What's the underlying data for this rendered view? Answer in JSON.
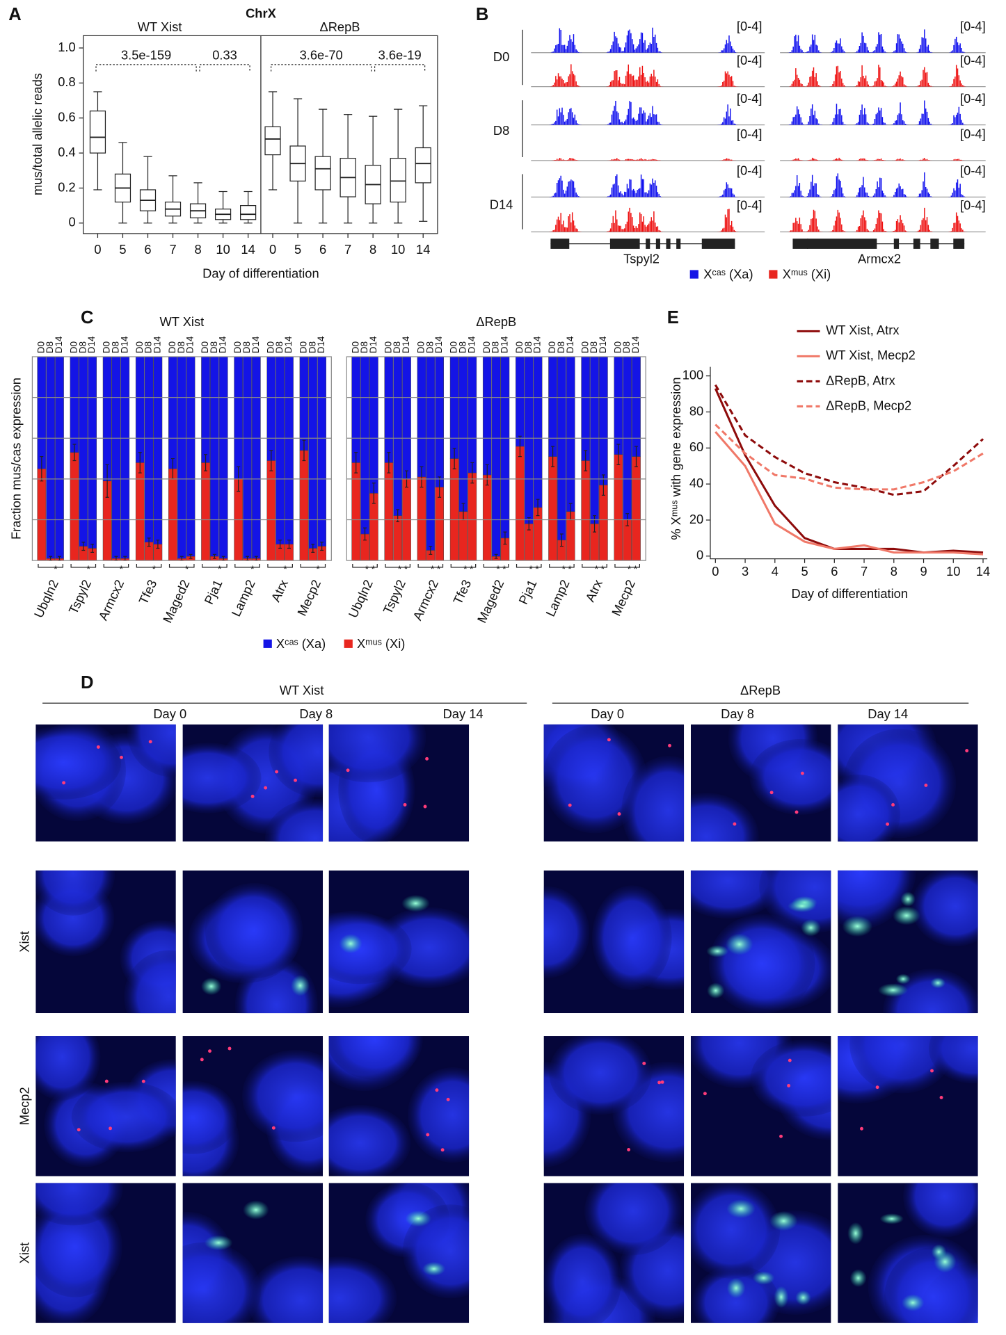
{
  "panel_labels": [
    "A",
    "B",
    "C",
    "D",
    "E"
  ],
  "chart_data": [
    {
      "type": "box",
      "title": "ChrX",
      "ylabel": "mus/total allelic reads",
      "xlabel": "Day of differentiation",
      "ylim": [
        -0.06,
        1.07
      ],
      "yticks": [
        0,
        0.2,
        0.4,
        0.6,
        0.8,
        {
          "value": 1,
          "label": "1.0"
        }
      ],
      "groups": [
        {
          "name": "WT Xist",
          "categories": [
            "0",
            "5",
            "6",
            "7",
            "8",
            "10",
            "14"
          ],
          "whisker_high": [
            0.75,
            0.46,
            0.38,
            0.27,
            0.23,
            0.18,
            0.18
          ],
          "q3": [
            0.64,
            0.28,
            0.19,
            0.12,
            0.11,
            0.08,
            0.1
          ],
          "median": [
            0.49,
            0.2,
            0.13,
            0.08,
            0.07,
            0.05,
            0.05
          ],
          "q1": [
            0.4,
            0.12,
            0.07,
            0.04,
            0.03,
            0.02,
            0.02
          ],
          "whisker_low": [
            0.19,
            0,
            0,
            0,
            0,
            0,
            0
          ],
          "annotations": [
            "3.5e-159",
            "0.33"
          ]
        },
        {
          "name": "ΔRepB",
          "categories": [
            "0",
            "5",
            "6",
            "7",
            "8",
            "10",
            "14"
          ],
          "whisker_high": [
            0.75,
            0.71,
            0.65,
            0.62,
            0.61,
            0.65,
            0.67
          ],
          "q3": [
            0.55,
            0.44,
            0.38,
            0.37,
            0.33,
            0.37,
            0.43
          ],
          "median": [
            0.48,
            0.34,
            0.31,
            0.26,
            0.22,
            0.24,
            0.34
          ],
          "q1": [
            0.39,
            0.24,
            0.19,
            0.15,
            0.11,
            0.12,
            0.23
          ],
          "whisker_low": [
            0.19,
            0,
            0,
            0,
            0,
            0,
            0.01
          ],
          "annotations": [
            "3.6e-70",
            "3.6e-19"
          ]
        }
      ]
    },
    {
      "type": "stacked_bar",
      "ylabel": "Fraction mus/cas expression",
      "ylim": [
        0,
        1
      ],
      "grid_lines": [
        0.2,
        0.4,
        0.6,
        0.8
      ],
      "categories": [
        "Ubqln2",
        "Tspyl2",
        "Armcx2",
        "Tfe3",
        "Maged2",
        "Pja1",
        "Lamp2",
        "Atrx",
        "Mecp2"
      ],
      "subcategories": [
        "D0",
        "D8",
        "D14"
      ],
      "groups": [
        {
          "title": "WT Xist",
          "annotation": "*"
        },
        {
          "title": "ΔRepB",
          "annotation": "* *"
        }
      ],
      "series": [
        {
          "name": "Xᶜᵃˢ (Xa)",
          "color": "#1414e6",
          "values": [
            [
              0.55,
              0.99,
              0.99,
              0.47,
              0.93,
              0.94,
              0.61,
              0.99,
              0.99,
              0.52,
              0.91,
              0.92,
              0.55,
              0.99,
              0.98,
              0.52,
              0.98,
              0.99,
              0.6,
              0.99,
              0.99,
              0.51,
              0.92,
              0.92,
              0.46,
              0.94,
              0.93
            ],
            [
              0.52,
              0.87,
              0.67,
              0.52,
              0.78,
              0.6,
              0.59,
              0.95,
              0.64,
              0.5,
              0.76,
              0.57,
              0.58,
              0.98,
              0.89,
              0.44,
              0.82,
              0.74,
              0.49,
              0.9,
              0.76,
              0.51,
              0.82,
              0.63,
              0.48,
              0.8,
              0.49
            ]
          ]
        },
        {
          "name": "Xᵐᵘˢ (Xi)",
          "color": "#e8261f",
          "values": [
            [
              0.45,
              0.01,
              0.01,
              0.53,
              0.07,
              0.06,
              0.39,
              0.01,
              0.01,
              0.48,
              0.09,
              0.08,
              0.45,
              0.01,
              0.02,
              0.48,
              0.02,
              0.01,
              0.4,
              0.01,
              0.01,
              0.49,
              0.08,
              0.08,
              0.54,
              0.06,
              0.07
            ],
            [
              0.48,
              0.13,
              0.33,
              0.48,
              0.22,
              0.4,
              0.41,
              0.05,
              0.36,
              0.5,
              0.24,
              0.43,
              0.42,
              0.02,
              0.11,
              0.56,
              0.18,
              0.26,
              0.51,
              0.1,
              0.24,
              0.49,
              0.18,
              0.37,
              0.52,
              0.2,
              0.51
            ]
          ],
          "errors": [
            [
              0.06,
              0.01,
              0.01,
              0.04,
              0.02,
              0.02,
              0.08,
              0.01,
              0.01,
              0.05,
              0.02,
              0.02,
              0.05,
              0.01,
              0.01,
              0.04,
              0.01,
              0.01,
              0.06,
              0.01,
              0.01,
              0.05,
              0.02,
              0.02,
              0.05,
              0.02,
              0.02
            ],
            [
              0.05,
              0.03,
              0.05,
              0.05,
              0.03,
              0.04,
              0.05,
              0.02,
              0.05,
              0.05,
              0.04,
              0.05,
              0.05,
              0.01,
              0.03,
              0.05,
              0.03,
              0.04,
              0.05,
              0.03,
              0.04,
              0.05,
              0.04,
              0.05,
              0.05,
              0.03,
              0.05
            ]
          ]
        }
      ]
    },
    {
      "type": "line",
      "ylabel": "% Xᵐᵘˢ with gene expression",
      "xlabel": "Day of differentiation",
      "categories": [
        "0",
        "3",
        "4",
        "5",
        "6",
        "7",
        "8",
        "9",
        "10",
        "14"
      ],
      "ylim": [
        -1.5,
        105
      ],
      "yticks": [
        0,
        20,
        40,
        60,
        80,
        100
      ],
      "series": [
        {
          "name": "WT Xist, Atrx",
          "color": "#8e0b0b",
          "dashed": false,
          "values": [
            93,
            56,
            28,
            10,
            4,
            4,
            4,
            2,
            3,
            2
          ]
        },
        {
          "name": "WT Xist, Mecp2",
          "color": "#f07868",
          "dashed": false,
          "values": [
            69,
            50,
            18,
            8,
            4,
            6,
            2,
            2,
            2,
            1
          ]
        },
        {
          "name": "ΔRepB, Atrx",
          "color": "#8e0b0b",
          "dashed": true,
          "values": [
            95,
            67,
            55,
            46,
            41,
            38,
            34,
            36,
            50,
            65
          ]
        },
        {
          "name": "ΔRepB, Mecp2",
          "color": "#f07868",
          "dashed": true,
          "values": [
            73,
            57,
            45,
            43,
            38,
            37,
            37,
            41,
            47,
            57
          ]
        }
      ]
    }
  ],
  "panel_b": {
    "days": [
      "D0",
      "D8",
      "D14"
    ],
    "range_label": "[0-4]",
    "genes": [
      "Tspyl2",
      "Armcx2"
    ],
    "legend": [
      "Xᶜᵃˢ (Xa)",
      "Xᵐᵘˢ (Xi)"
    ]
  },
  "panel_d": {
    "groups": [
      "WT Xist",
      "ΔRepB"
    ],
    "columns": [
      "Day 0",
      "Day 8",
      "Day 14"
    ],
    "row_labels": [
      null,
      "Xist",
      "Mecp2",
      "Xist"
    ]
  }
}
